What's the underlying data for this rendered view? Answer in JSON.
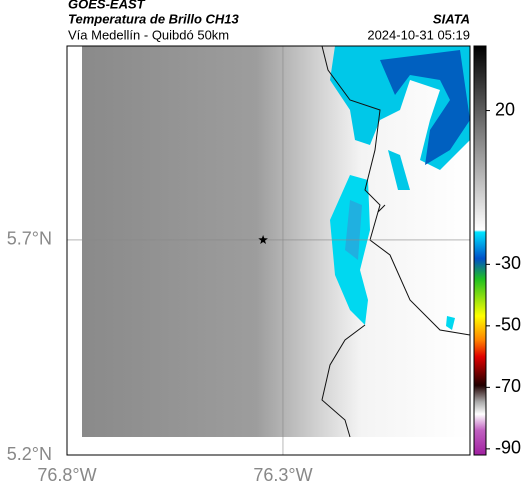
{
  "header": {
    "source": "GOES-EAST",
    "title": "Temperatura de Brillo CH13",
    "subtitle": "Vía Medellín - Quibdó 50km",
    "credit": "SIATA",
    "timestamp": "2024-10-31 05:19"
  },
  "map": {
    "xlim": [
      -76.8,
      -75.867
    ],
    "ylim": [
      5.2,
      6.151
    ],
    "xticks": [
      {
        "value": -76.8,
        "label": "76.8°W"
      },
      {
        "value": -76.3,
        "label": "76.3°W"
      }
    ],
    "yticks": [
      {
        "value": 5.2,
        "label": "5.2°N"
      },
      {
        "value": 5.7,
        "label": "5.7°N"
      }
    ],
    "marker": {
      "lon": -76.346,
      "lat": 5.7
    }
  },
  "colorbar": {
    "lim": [
      -92,
      41
    ],
    "ticks": [
      20,
      -30,
      -50,
      -70,
      -90
    ]
  }
}
